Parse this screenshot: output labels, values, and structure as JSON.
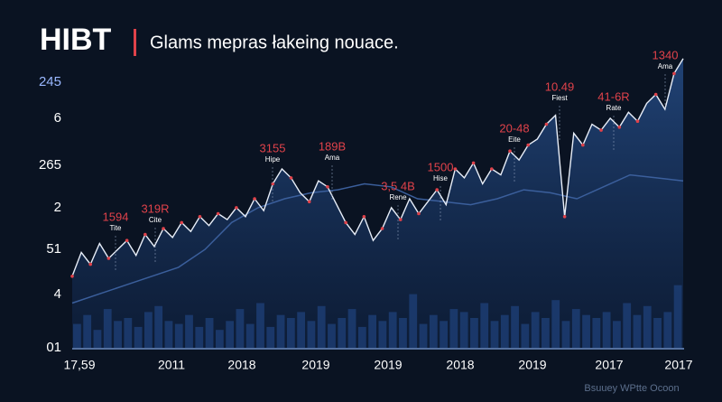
{
  "chart_data": {
    "type": "line",
    "title": "HIBT",
    "subtitle": "Glams mepras łakeing nouace.",
    "y_labels": [
      "245",
      "6",
      "265",
      "2",
      "51",
      "4",
      "01"
    ],
    "x_labels": [
      "17,59",
      "2011",
      "2018",
      "2019",
      "2019",
      "2018",
      "2019",
      "2017",
      "2017"
    ],
    "ylim": [
      0,
      100
    ],
    "series": [
      {
        "color": "#e8eef8",
        "values": [
          24,
          32,
          28,
          35,
          30,
          33,
          36,
          31,
          38,
          34,
          40,
          37,
          42,
          39,
          44,
          41,
          45,
          43,
          47,
          44,
          50,
          46,
          55,
          60,
          57,
          52,
          49,
          56,
          54,
          48,
          42,
          38,
          44,
          36,
          40,
          47,
          43,
          50,
          45,
          49,
          53,
          48,
          60,
          57,
          62,
          55,
          60,
          58,
          66,
          63,
          68,
          70,
          75,
          78,
          44,
          72,
          68,
          75,
          73,
          77,
          74,
          79,
          76,
          82,
          85,
          80,
          92,
          97
        ]
      },
      {
        "color": "#3b5f9c",
        "values": [
          15,
          18,
          21,
          24,
          27,
          33,
          42,
          47,
          50,
          52,
          53,
          55,
          54,
          50,
          49,
          48,
          50,
          53,
          52,
          50,
          54,
          58,
          57,
          56
        ]
      },
      {
        "color": "#2f63b8",
        "values": [
          8,
          11,
          6,
          13,
          9,
          10,
          7,
          12,
          14,
          9,
          8,
          11,
          7,
          10,
          6,
          9,
          13,
          8,
          15,
          7,
          11,
          10,
          12,
          9,
          14,
          8,
          10,
          13,
          7,
          11,
          9,
          12,
          10,
          18,
          8,
          11,
          9,
          13,
          12,
          10,
          15,
          9,
          11,
          14,
          8,
          12,
          10,
          16,
          9,
          13,
          11,
          10,
          12,
          9,
          15,
          11,
          14,
          10,
          12,
          21
        ]
      }
    ],
    "annotations": [
      {
        "title": "1594",
        "subtitle": "Tite"
      },
      {
        "title": "319R",
        "subtitle": "Cite"
      },
      {
        "title": "3155",
        "subtitle": "Hipe"
      },
      {
        "title": "189B",
        "subtitle": "Ama"
      },
      {
        "title": "3,5 4B",
        "subtitle": "Rene"
      },
      {
        "title": "1500",
        "subtitle": "Hise"
      },
      {
        "title": "20-48",
        "subtitle": "Eite"
      },
      {
        "title": "10.49",
        "subtitle": "Fiest"
      },
      {
        "title": "41-6R",
        "subtitle": "Rate"
      },
      {
        "title": "1340",
        "subtitle": "Ama"
      }
    ],
    "watermark": "Bsuuey WPtte Ocoon"
  }
}
